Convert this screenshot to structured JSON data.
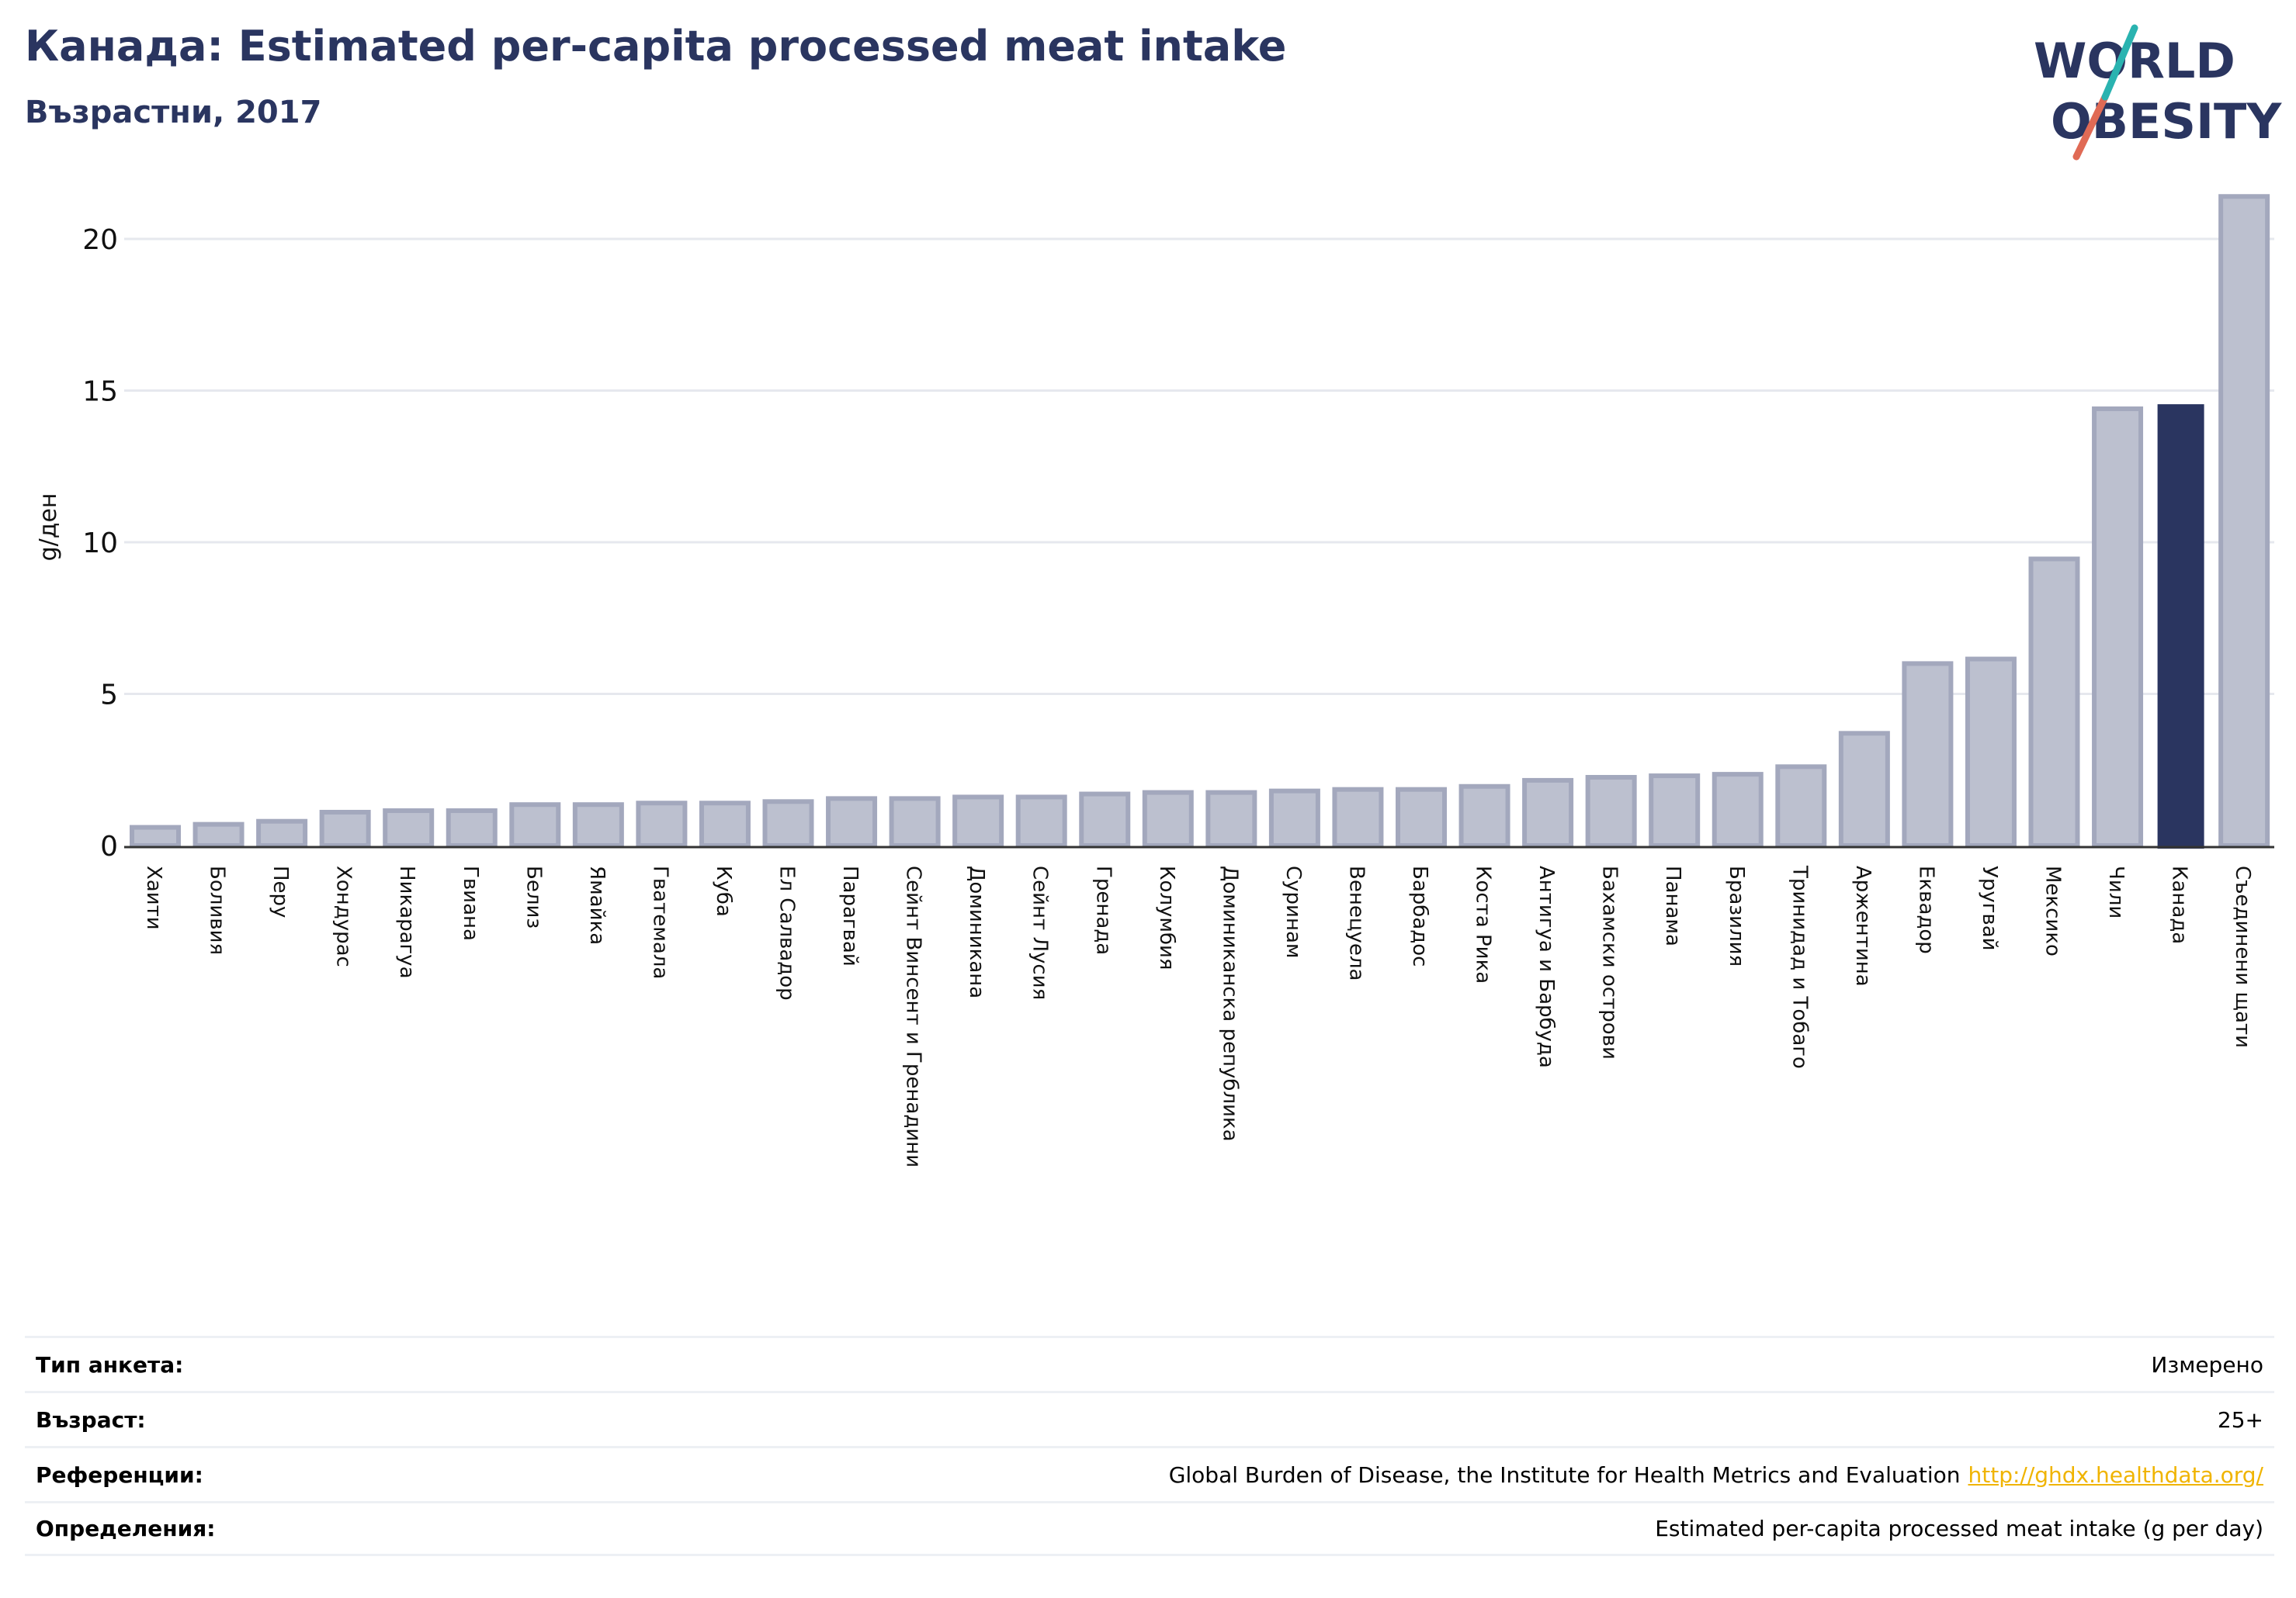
{
  "header": {
    "title": "Канада: Estimated per-capita processed meat intake",
    "subtitle": "Възрастни, 2017"
  },
  "logo": {
    "line1": "WORLD",
    "line2": "OBESITY",
    "accent_teal": "#2ab3b0",
    "accent_red": "#e06a55",
    "color": "#2a3560"
  },
  "colors": {
    "bar": "#bcc0cf",
    "bar_edge": "#a3a8bd",
    "highlight": "#2a3560",
    "grid": "#e6e8ee"
  },
  "chart_data": {
    "type": "bar",
    "title": "Канада: Estimated per-capita processed meat intake",
    "subtitle": "Възрастни, 2017",
    "ylabel": "g/ден",
    "ylim": [
      0,
      22
    ],
    "yticks": [
      0,
      5,
      10,
      15,
      20
    ],
    "grid": true,
    "highlight": "Канада",
    "categories": [
      "Хаити",
      "Боливия",
      "Перу",
      "Хондурас",
      "Никарагуа",
      "Гвиана",
      "Белиз",
      "Ямайка",
      "Гватемала",
      "Куба",
      "Ел Салвадор",
      "Парагвай",
      "Сейнт Винсент и Гренадини",
      "Доминикана",
      "Сейнт Лусия",
      "Гренада",
      "Колумбия",
      "Доминиканска република",
      "Суринам",
      "Венецуела",
      "Барбадос",
      "Коста Рика",
      "Антигуа и Барбуда",
      "Бахамски острови",
      "Панама",
      "Бразилия",
      "Тринидад и Тобаго",
      "Аржентина",
      "Еквадор",
      "Уругвай",
      "Мексико",
      "Чили",
      "Канада",
      "Съединени щати"
    ],
    "values": [
      0.6,
      0.7,
      0.8,
      1.1,
      1.15,
      1.15,
      1.35,
      1.35,
      1.4,
      1.4,
      1.45,
      1.55,
      1.55,
      1.6,
      1.6,
      1.7,
      1.75,
      1.75,
      1.8,
      1.85,
      1.85,
      1.95,
      2.15,
      2.25,
      2.3,
      2.35,
      2.6,
      3.7,
      6.0,
      6.15,
      9.45,
      14.4,
      14.55,
      21.4
    ]
  },
  "meta": {
    "rows": [
      {
        "key": "Тип анкета:",
        "value": "Измерено"
      },
      {
        "key": "Възраст:",
        "value": "25+"
      },
      {
        "key": "Референции:",
        "value": "Global Burden of Disease, the Institute for Health Metrics and Evaluation",
        "link": "http://ghdx.healthdata.org/"
      },
      {
        "key": "Определения:",
        "value": "Estimated per-capita processed meat intake (g per day)"
      }
    ]
  }
}
